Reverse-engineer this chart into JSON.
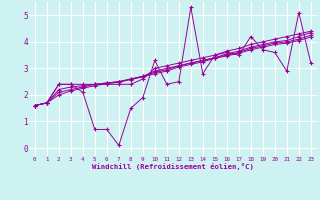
{
  "xlabel": "Windchill (Refroidissement éolien,°C)",
  "bg_color": "#cef2f2",
  "line_color": "#990099",
  "grid_color": "#ffffff",
  "xlim": [
    -0.5,
    23.5
  ],
  "ylim": [
    -0.3,
    5.5
  ],
  "xticks": [
    0,
    1,
    2,
    3,
    4,
    5,
    6,
    7,
    8,
    9,
    10,
    11,
    12,
    13,
    14,
    15,
    16,
    17,
    18,
    19,
    20,
    21,
    22,
    23
  ],
  "yticks": [
    0,
    1,
    2,
    3,
    4,
    5
  ],
  "series": [
    [
      1.6,
      1.7,
      2.4,
      2.4,
      2.1,
      0.7,
      0.7,
      0.1,
      1.5,
      1.9,
      3.3,
      2.4,
      2.5,
      5.3,
      2.8,
      3.5,
      3.6,
      3.5,
      4.2,
      3.7,
      3.6,
      2.9,
      5.1,
      3.2
    ],
    [
      1.6,
      1.7,
      2.4,
      2.4,
      2.4,
      2.4,
      2.4,
      2.4,
      2.4,
      2.6,
      3.0,
      3.1,
      3.2,
      3.3,
      3.4,
      3.5,
      3.65,
      3.75,
      3.9,
      4.0,
      4.1,
      4.2,
      4.3,
      4.4
    ],
    [
      1.6,
      1.7,
      2.2,
      2.3,
      2.35,
      2.4,
      2.45,
      2.5,
      2.6,
      2.7,
      2.9,
      3.0,
      3.1,
      3.2,
      3.3,
      3.4,
      3.55,
      3.65,
      3.8,
      3.9,
      4.0,
      4.05,
      4.2,
      4.35
    ],
    [
      1.6,
      1.7,
      2.1,
      2.2,
      2.3,
      2.4,
      2.45,
      2.5,
      2.6,
      2.7,
      2.85,
      2.95,
      3.1,
      3.2,
      3.3,
      3.4,
      3.5,
      3.6,
      3.75,
      3.85,
      3.95,
      4.0,
      4.1,
      4.25
    ],
    [
      1.6,
      1.7,
      2.0,
      2.15,
      2.25,
      2.35,
      2.42,
      2.48,
      2.58,
      2.68,
      2.8,
      2.9,
      3.05,
      3.15,
      3.25,
      3.38,
      3.47,
      3.57,
      3.7,
      3.8,
      3.9,
      3.95,
      4.05,
      4.18
    ]
  ]
}
